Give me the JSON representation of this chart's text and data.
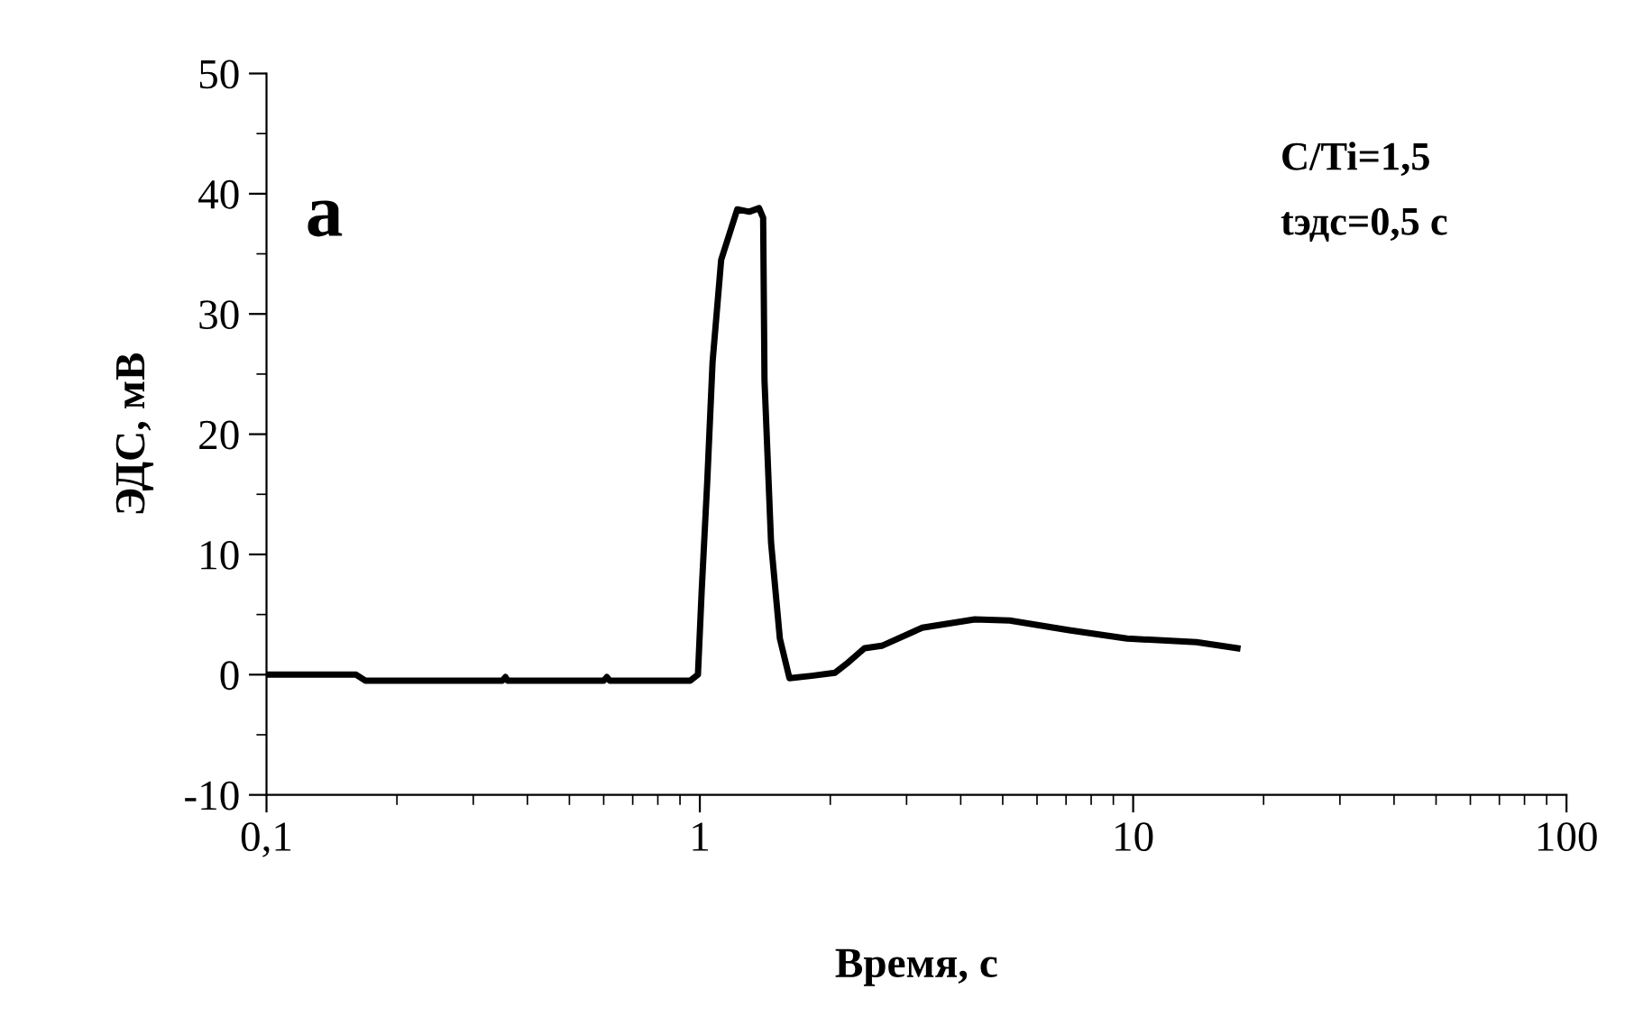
{
  "chart_data": {
    "type": "line",
    "xlabel": "Время, с",
    "ylabel": "ЭДС, мВ",
    "log": "x",
    "xlim": [
      0.1,
      100
    ],
    "xticks": [
      {
        "value": 0.1,
        "label": "0,1"
      },
      1,
      10,
      100
    ],
    "ylim": [
      -10,
      50
    ],
    "yticks": [
      -10,
      0,
      10,
      20,
      30,
      40,
      50
    ],
    "grid": false,
    "legend": false,
    "marker": "none",
    "line_style": "solid",
    "annotations": [
      "a",
      "C/Ti=1,5",
      "tэдс=0,5 с"
    ],
    "series": [
      {
        "color": "#000000",
        "x": [
          0.1,
          0.161,
          0.169,
          0.35,
          0.356,
          0.36,
          0.6,
          0.61,
          0.62,
          0.95,
          0.99,
          1.01,
          1.04,
          1.07,
          1.12,
          1.22,
          1.3,
          1.37,
          1.4,
          1.41,
          1.46,
          1.53,
          1.61,
          1.81,
          2.05,
          2.18,
          2.4,
          2.63,
          3.26,
          4.31,
          5.19,
          7.12,
          9.68,
          14.0,
          17.4
        ],
        "values": [
          0,
          0,
          -0.5,
          -0.5,
          -0.2,
          -0.5,
          -0.5,
          -0.2,
          -0.5,
          -0.5,
          0,
          7,
          16,
          26,
          34.5,
          38.7,
          38.5,
          38.8,
          38,
          24.5,
          11,
          3,
          -0.3,
          -0.1,
          0.15,
          0.9,
          2.2,
          2.4,
          3.9,
          4.6,
          4.5,
          3.7,
          3.0,
          2.7,
          2.2
        ]
      }
    ]
  }
}
